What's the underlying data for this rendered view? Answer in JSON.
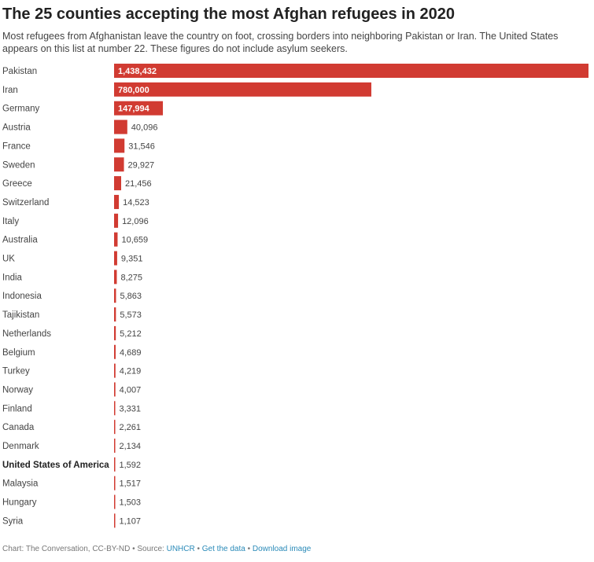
{
  "title": "The 25 counties accepting the most Afghan refugees in 2020",
  "subtitle": "Most refugees from Afghanistan leave the country on foot, crossing borders into neighboring Pakistan or Iran. The United States appears on this list at number 22. These figures do not include asylum seekers.",
  "colors": {
    "bar": "#d13b32"
  },
  "chart_data": {
    "type": "bar",
    "orientation": "horizontal",
    "categories": [
      "Pakistan",
      "Iran",
      "Germany",
      "Austria",
      "France",
      "Sweden",
      "Greece",
      "Switzerland",
      "Italy",
      "Australia",
      "UK",
      "India",
      "Indonesia",
      "Tajikistan",
      "Netherlands",
      "Belgium",
      "Turkey",
      "Norway",
      "Finland",
      "Canada",
      "Denmark",
      "United States of America",
      "Malaysia",
      "Hungary",
      "Syria"
    ],
    "values": [
      1438432,
      780000,
      147994,
      40096,
      31546,
      29927,
      21456,
      14523,
      12096,
      10659,
      9351,
      8275,
      5863,
      5573,
      5212,
      4689,
      4219,
      4007,
      3331,
      2261,
      2134,
      1592,
      1517,
      1503,
      1107
    ],
    "value_labels": [
      "1,438,432",
      "780,000",
      "147,994",
      "40,096",
      "31,546",
      "29,927",
      "21,456",
      "14,523",
      "12,096",
      "10,659",
      "9,351",
      "8,275",
      "5,863",
      "5,573",
      "5,212",
      "4,689",
      "4,219",
      "4,007",
      "3,331",
      "2,261",
      "2,134",
      "1,592",
      "1,517",
      "1,503",
      "1,107"
    ],
    "highlight_category": "United States of America",
    "xlim": [
      0,
      1438432
    ],
    "grid": false,
    "legend": "none"
  },
  "footer": {
    "source_text": "Chart: The Conversation, CC-BY-ND • Source: ",
    "source_link": "UNHCR",
    "sep1": " • ",
    "get_data": "Get the data",
    "sep2": " • ",
    "download": "Download image"
  }
}
